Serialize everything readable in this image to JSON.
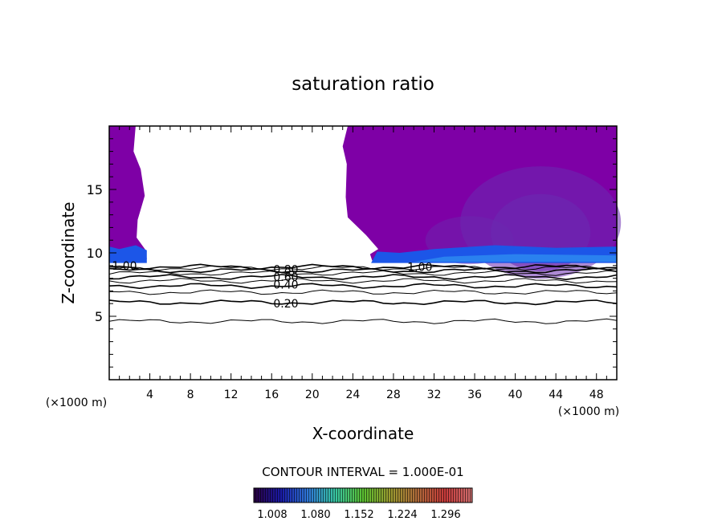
{
  "chart_data": {
    "type": "contour",
    "title": "saturation ratio",
    "xlabel": "X-coordinate",
    "ylabel": "Z-coordinate",
    "x_unit_left": "(×1000 m)",
    "x_unit_right": "(×1000 m)",
    "xlim": [
      0,
      50
    ],
    "ylim": [
      0,
      20
    ],
    "x_ticks": [
      "4",
      "8",
      "12",
      "16",
      "20",
      "24",
      "28",
      "32",
      "36",
      "40",
      "44",
      "48"
    ],
    "y_ticks": [
      "5",
      "10",
      "15"
    ],
    "contour_interval_text": "CONTOUR INTERVAL = 1.000E-01",
    "contour_labels": [
      "1.00",
      "0.80",
      "0.60",
      "0.40",
      "0.20",
      "1.00"
    ],
    "contour_lines": [
      {
        "level": 0.1,
        "z": 4.6
      },
      {
        "level": 0.2,
        "z": 6.1
      },
      {
        "level": 0.3,
        "z": 6.9
      },
      {
        "level": 0.4,
        "z": 7.4
      },
      {
        "level": 0.5,
        "z": 7.8
      },
      {
        "level": 0.6,
        "z": 8.1
      },
      {
        "level": 0.7,
        "z": 8.4
      },
      {
        "level": 0.8,
        "z": 8.6
      },
      {
        "level": 0.9,
        "z": 8.8
      },
      {
        "level": 1.0,
        "z": 8.9
      }
    ],
    "colorbar": {
      "ticks": [
        "1.008",
        "1.080",
        "1.152",
        "1.224",
        "1.296"
      ],
      "colors": [
        "#2a0040",
        "#1a1aa8",
        "#2f7ad8",
        "#38c6a0",
        "#5ac030",
        "#9a9a30",
        "#b06a3a",
        "#c83a3a",
        "#d07070"
      ]
    },
    "fill_colors": {
      "supersaturated": "#7e00a6",
      "plume": "#6a2ab0",
      "band": "#1c56e8",
      "band_light": "#2e8cf0"
    }
  }
}
